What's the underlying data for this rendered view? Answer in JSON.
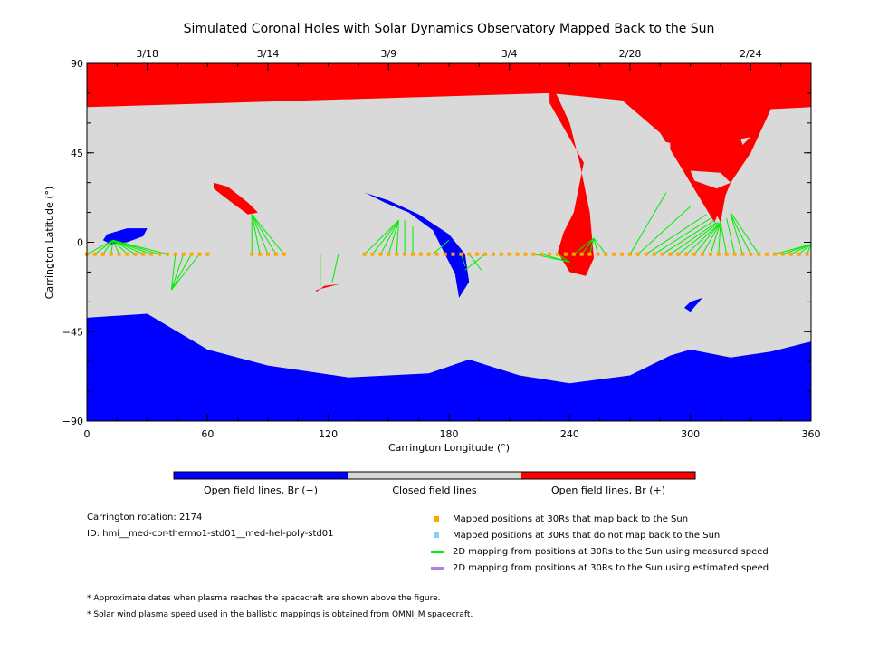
{
  "chart_data": {
    "type": "heatmap",
    "title": "Simulated Coronal Holes with Solar Dynamics Observatory Mapped Back to the Sun",
    "xlabel": "Carrington Longitude (°)",
    "ylabel": "Carrington Latitude (°)",
    "xlim": [
      0,
      360
    ],
    "ylim": [
      -90,
      90
    ],
    "x_ticks": [
      "0",
      "60",
      "120",
      "180",
      "240",
      "300",
      "360"
    ],
    "y_ticks": [
      "90",
      "45",
      "0",
      "-45",
      "-90"
    ],
    "top_date_ticks": [
      {
        "label": "3/18",
        "lon": 30
      },
      {
        "label": "3/14",
        "lon": 90
      },
      {
        "label": "3/9",
        "lon": 150
      },
      {
        "label": "3/4",
        "lon": 210
      },
      {
        "label": "2/28",
        "lon": 270
      },
      {
        "label": "2/24",
        "lon": 330
      }
    ],
    "colors": {
      "open_negative": "#0000ff",
      "closed": "#d9d9d9",
      "open_positive": "#ff0000",
      "mapped": "#ffa500",
      "unmapped": "#87cefa",
      "measured_line": "#00ee00",
      "estimated_line": "#b47ee5"
    },
    "regions": [
      {
        "kind": "open_negative",
        "name": "south polar",
        "poly": [
          [
            0,
            -90
          ],
          [
            360,
            -90
          ],
          [
            360,
            -50
          ],
          [
            340,
            -55
          ],
          [
            320,
            -58
          ],
          [
            300,
            -54
          ],
          [
            290,
            -57
          ],
          [
            270,
            -67
          ],
          [
            240,
            -71
          ],
          [
            215,
            -67
          ],
          [
            190,
            -59
          ],
          [
            170,
            -66
          ],
          [
            130,
            -68
          ],
          [
            90,
            -62
          ],
          [
            60,
            -54
          ],
          [
            45,
            -45
          ],
          [
            30,
            -36
          ],
          [
            0,
            -38
          ]
        ]
      },
      {
        "kind": "open_positive",
        "name": "north polar",
        "poly": [
          [
            0,
            90
          ],
          [
            360,
            90
          ],
          [
            360,
            68
          ],
          [
            340,
            67
          ],
          [
            330,
            45
          ],
          [
            320,
            38
          ],
          [
            315,
            10
          ],
          [
            300,
            40
          ],
          [
            280,
            70
          ],
          [
            230,
            75
          ],
          [
            0,
            68
          ]
        ]
      },
      {
        "kind": "open_positive",
        "name": "north lobe",
        "poly": [
          [
            230,
            82
          ],
          [
            240,
            60
          ],
          [
            245,
            40
          ],
          [
            250,
            15
          ],
          [
            252,
            -8
          ],
          [
            248,
            -17
          ],
          [
            240,
            -15
          ],
          [
            234,
            -5
          ],
          [
            237,
            5
          ],
          [
            242,
            15
          ],
          [
            247,
            40
          ],
          [
            230,
            70
          ]
        ]
      },
      {
        "kind": "open_positive",
        "name": "north lobe east",
        "poly": [
          [
            260,
            80
          ],
          [
            290,
            70
          ],
          [
            310,
            60
          ],
          [
            330,
            45
          ],
          [
            320,
            30
          ],
          [
            312,
            10
          ],
          [
            300,
            30
          ],
          [
            285,
            55
          ],
          [
            262,
            75
          ]
        ]
      },
      {
        "kind": "open_negative",
        "name": "equatorial hole",
        "poly": [
          [
            138,
            25
          ],
          [
            150,
            21
          ],
          [
            165,
            14
          ],
          [
            180,
            4
          ],
          [
            188,
            -6
          ],
          [
            190,
            -20
          ],
          [
            185,
            -28
          ],
          [
            183,
            -16
          ],
          [
            178,
            -6
          ],
          [
            172,
            6
          ],
          [
            160,
            15
          ],
          [
            148,
            20
          ],
          [
            140,
            24
          ]
        ]
      },
      {
        "kind": "open_negative",
        "name": "west hole",
        "poly": [
          [
            10,
            4
          ],
          [
            20,
            7
          ],
          [
            30,
            7
          ],
          [
            28,
            3
          ],
          [
            20,
            0
          ],
          [
            12,
            -1
          ],
          [
            8,
            1
          ]
        ]
      },
      {
        "kind": "open_positive",
        "name": "small red top",
        "poly": [
          [
            63,
            30
          ],
          [
            70,
            28
          ],
          [
            80,
            20
          ],
          [
            85,
            15
          ],
          [
            80,
            14
          ],
          [
            72,
            20
          ],
          [
            63,
            27
          ]
        ]
      },
      {
        "kind": "open_positive",
        "name": "small red mid",
        "poly": [
          [
            114,
            -24
          ],
          [
            122,
            -22
          ],
          [
            126,
            -21
          ],
          [
            118,
            -22
          ],
          [
            114,
            -25
          ]
        ]
      },
      {
        "kind": "open_negative",
        "name": "small blue east",
        "poly": [
          [
            300,
            -30
          ],
          [
            306,
            -28
          ],
          [
            300,
            -35
          ],
          [
            297,
            -33
          ]
        ]
      }
    ],
    "closed_patches": [
      {
        "poly": [
          [
            300,
            36
          ],
          [
            315,
            35
          ],
          [
            320,
            30
          ],
          [
            313,
            27
          ],
          [
            302,
            31
          ]
        ]
      },
      {
        "poly": [
          [
            262,
            57
          ],
          [
            275,
            53
          ],
          [
            290,
            50
          ],
          [
            290,
            46
          ],
          [
            275,
            48
          ],
          [
            262,
            52
          ]
        ]
      },
      {
        "poly": [
          [
            325,
            52
          ],
          [
            330,
            53
          ],
          [
            326,
            49
          ]
        ]
      }
    ],
    "mapped_points_lon": [
      0,
      4,
      8,
      12,
      16,
      20,
      24,
      28,
      32,
      36,
      40,
      44,
      48,
      52,
      56,
      60,
      82,
      86,
      90,
      94,
      98,
      138,
      142,
      146,
      150,
      154,
      158,
      162,
      166,
      170,
      174,
      178,
      182,
      186,
      190,
      194,
      198,
      202,
      206,
      210,
      214,
      218,
      222,
      226,
      230,
      234,
      238,
      242,
      246,
      250,
      254,
      258,
      262,
      266,
      270,
      274,
      278,
      282,
      286,
      290,
      294,
      298,
      302,
      306,
      310,
      314,
      318,
      322,
      326,
      330,
      334,
      338,
      342,
      346,
      350,
      354,
      358
    ],
    "mapped_points_lat": -6,
    "mapping_lines": [
      [
        [
          0,
          -6
        ],
        [
          13,
          1
        ]
      ],
      [
        [
          4,
          -6
        ],
        [
          13,
          1
        ]
      ],
      [
        [
          8,
          -6
        ],
        [
          13,
          1
        ]
      ],
      [
        [
          12,
          -6
        ],
        [
          13,
          1
        ]
      ],
      [
        [
          16,
          -6
        ],
        [
          13,
          1
        ]
      ],
      [
        [
          20,
          -6
        ],
        [
          13,
          1
        ]
      ],
      [
        [
          24,
          -6
        ],
        [
          13,
          1
        ]
      ],
      [
        [
          28,
          -6
        ],
        [
          13,
          1
        ]
      ],
      [
        [
          32,
          -6
        ],
        [
          13,
          1
        ]
      ],
      [
        [
          36,
          -6
        ],
        [
          13,
          1
        ]
      ],
      [
        [
          40,
          -6
        ],
        [
          13,
          1
        ]
      ],
      [
        [
          44,
          -6
        ],
        [
          42,
          -24
        ]
      ],
      [
        [
          48,
          -6
        ],
        [
          42,
          -24
        ]
      ],
      [
        [
          52,
          -6
        ],
        [
          42,
          -24
        ]
      ],
      [
        [
          56,
          -6
        ],
        [
          42,
          -24
        ]
      ],
      [
        [
          82,
          -6
        ],
        [
          82,
          14
        ]
      ],
      [
        [
          86,
          -6
        ],
        [
          82,
          14
        ]
      ],
      [
        [
          90,
          -6
        ],
        [
          82,
          14
        ]
      ],
      [
        [
          94,
          -6
        ],
        [
          82,
          14
        ]
      ],
      [
        [
          98,
          -6
        ],
        [
          82,
          14
        ]
      ],
      [
        [
          116,
          -6
        ],
        [
          116,
          -22
        ]
      ],
      [
        [
          125,
          -6
        ],
        [
          122,
          -20
        ]
      ],
      [
        [
          138,
          -6
        ],
        [
          155,
          11
        ]
      ],
      [
        [
          142,
          -6
        ],
        [
          155,
          11
        ]
      ],
      [
        [
          146,
          -6
        ],
        [
          155,
          11
        ]
      ],
      [
        [
          150,
          -6
        ],
        [
          155,
          11
        ]
      ],
      [
        [
          154,
          -6
        ],
        [
          155,
          11
        ]
      ],
      [
        [
          158,
          -6
        ],
        [
          158,
          11
        ]
      ],
      [
        [
          162,
          -6
        ],
        [
          162,
          8
        ]
      ],
      [
        [
          172,
          -6
        ],
        [
          180,
          1
        ]
      ],
      [
        [
          186,
          -6
        ],
        [
          188,
          -12
        ]
      ],
      [
        [
          190,
          -6
        ],
        [
          196,
          -14
        ]
      ],
      [
        [
          198,
          -6
        ],
        [
          188,
          -14
        ]
      ],
      [
        [
          222,
          -6
        ],
        [
          240,
          -10
        ]
      ],
      [
        [
          226,
          -6
        ],
        [
          240,
          -10
        ]
      ],
      [
        [
          234,
          -6
        ],
        [
          240,
          -10
        ]
      ],
      [
        [
          242,
          -6
        ],
        [
          252,
          2
        ]
      ],
      [
        [
          246,
          -6
        ],
        [
          252,
          2
        ]
      ],
      [
        [
          250,
          -6
        ],
        [
          252,
          2
        ]
      ],
      [
        [
          254,
          -6
        ],
        [
          252,
          2
        ]
      ],
      [
        [
          258,
          -6
        ],
        [
          252,
          2
        ]
      ],
      [
        [
          270,
          -6
        ],
        [
          288,
          25
        ]
      ],
      [
        [
          274,
          -6
        ],
        [
          300,
          18
        ]
      ],
      [
        [
          278,
          -6
        ],
        [
          308,
          14
        ]
      ],
      [
        [
          282,
          -6
        ],
        [
          310,
          12
        ]
      ],
      [
        [
          286,
          -6
        ],
        [
          312,
          11
        ]
      ],
      [
        [
          290,
          -6
        ],
        [
          313,
          10
        ]
      ],
      [
        [
          294,
          -6
        ],
        [
          314,
          10
        ]
      ],
      [
        [
          298,
          -6
        ],
        [
          315,
          10
        ]
      ],
      [
        [
          302,
          -6
        ],
        [
          315,
          10
        ]
      ],
      [
        [
          306,
          -6
        ],
        [
          315,
          10
        ]
      ],
      [
        [
          310,
          -6
        ],
        [
          315,
          10
        ]
      ],
      [
        [
          314,
          -6
        ],
        [
          315,
          10
        ]
      ],
      [
        [
          318,
          -6
        ],
        [
          315,
          10
        ]
      ],
      [
        [
          322,
          -6
        ],
        [
          318,
          12
        ]
      ],
      [
        [
          326,
          -6
        ],
        [
          320,
          14
        ]
      ],
      [
        [
          330,
          -6
        ],
        [
          320,
          14
        ]
      ],
      [
        [
          334,
          -6
        ],
        [
          320,
          15
        ]
      ],
      [
        [
          342,
          -6
        ],
        [
          360,
          -1
        ]
      ],
      [
        [
          346,
          -6
        ],
        [
          360,
          -1
        ]
      ],
      [
        [
          350,
          -6
        ],
        [
          360,
          -1
        ]
      ],
      [
        [
          354,
          -6
        ],
        [
          360,
          -1
        ]
      ],
      [
        [
          358,
          -6
        ],
        [
          360,
          -1
        ]
      ]
    ],
    "colorbar": [
      {
        "label": "Open field lines, Br (−)",
        "color": "#0000ff"
      },
      {
        "label": "Closed field lines",
        "color": "#d9d9d9"
      },
      {
        "label": "Open field lines, Br (+)",
        "color": "#ff0000"
      }
    ]
  },
  "info": {
    "rotation": "Carrington rotation: 2174",
    "id": "ID: hmi__med-cor-thermo1-std01__med-hel-poly-std01"
  },
  "legend": [
    {
      "type": "square",
      "color": "#ffa500",
      "label": "Mapped positions at 30Rs that map back to the Sun"
    },
    {
      "type": "square",
      "color": "#87cefa",
      "label": "Mapped positions at 30Rs that do not map back to the Sun"
    },
    {
      "type": "line",
      "color": "#00ee00",
      "label": "2D mapping from positions at 30Rs to the Sun using measured speed"
    },
    {
      "type": "line",
      "color": "#b47ee5",
      "label": "2D mapping from positions at 30Rs to the Sun using estimated speed"
    }
  ],
  "notes": [
    "* Approximate dates when plasma reaches the spacecraft are shown above the figure.",
    "* Solar wind plasma speed used in the ballistic mappings is obtained from OMNI_M spacecraft."
  ]
}
